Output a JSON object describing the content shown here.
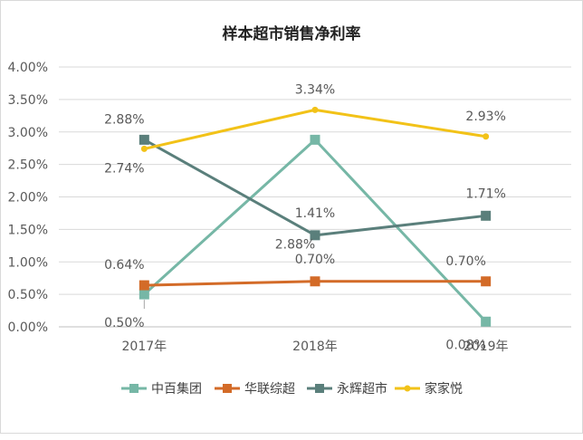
{
  "chart_data": {
    "type": "line",
    "title": "样本超市销售净利率",
    "categories": [
      "2017年",
      "2018年",
      "2019年"
    ],
    "y_ticks": [
      "0.00%",
      "0.50%",
      "1.00%",
      "1.50%",
      "2.00%",
      "2.50%",
      "3.00%",
      "3.50%",
      "4.00%"
    ],
    "ylim": [
      0,
      4.0
    ],
    "y_unit": "%",
    "grid": true,
    "legend_position": "bottom",
    "series": [
      {
        "name": "中百集团",
        "values": [
          0.5,
          2.88,
          0.08
        ],
        "labels": [
          "0.50%",
          "2.88%",
          "0.08%"
        ],
        "color": "#76b7a6",
        "marker": "square"
      },
      {
        "name": "华联综超",
        "values": [
          0.64,
          0.7,
          0.7
        ],
        "labels": [
          "0.64%",
          "0.70%",
          "0.70%"
        ],
        "color": "#d36b28",
        "marker": "square"
      },
      {
        "name": "永辉超市",
        "values": [
          2.88,
          1.41,
          1.71
        ],
        "labels": [
          "2.88%",
          "1.41%",
          "1.71%"
        ],
        "color": "#5a7f7b",
        "marker": "square"
      },
      {
        "name": "家家悦",
        "values": [
          2.74,
          3.34,
          2.93
        ],
        "labels": [
          "2.74%",
          "3.34%",
          "2.93%"
        ],
        "color": "#f2c218",
        "marker": "circle"
      }
    ]
  }
}
